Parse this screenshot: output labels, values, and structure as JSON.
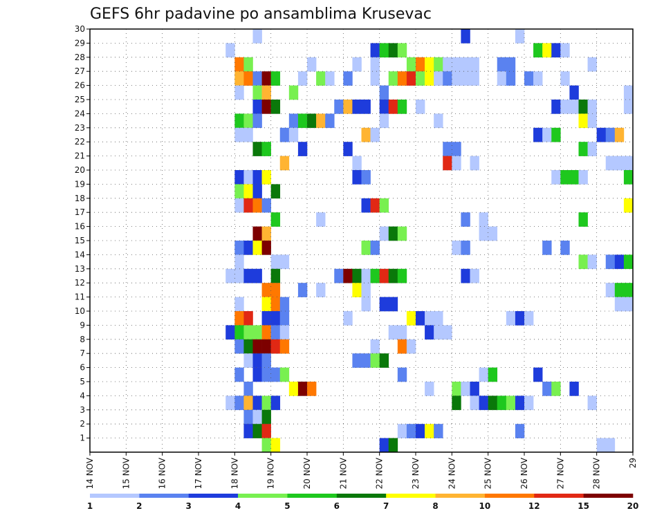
{
  "chart_data": {
    "type": "heatmap",
    "title": "GEFS 6hr padavine po ansamblima Krusevac",
    "xlabel": "",
    "ylabel": "",
    "y_ticks": [
      "1",
      "2",
      "3",
      "4",
      "5",
      "6",
      "7",
      "8",
      "9",
      "10",
      "11",
      "12",
      "13",
      "14",
      "15",
      "16",
      "17",
      "18",
      "19",
      "20",
      "21",
      "22",
      "23",
      "24",
      "25",
      "26",
      "27",
      "28",
      "29",
      "30"
    ],
    "x_ticks": [
      "14 NOV",
      "15 NOV",
      "16 NOV",
      "17 NOV",
      "18 NOV",
      "19 NOV",
      "20 NOV",
      "21 NOV",
      "22 NOV",
      "23 NOV",
      "24 NOV",
      "25 NOV",
      "26 NOV",
      "27 NOV",
      "28 NOV",
      "29"
    ],
    "x_range": [
      0,
      60
    ],
    "y_range": [
      0,
      30
    ],
    "time_step": "6hr",
    "legend": {
      "colors": [
        "#b4c8ff",
        "#5a82f0",
        "#1e3cdc",
        "#78f050",
        "#1ec81e",
        "#0a780a",
        "#ffff00",
        "#ffb432",
        "#ff7800",
        "#e12814",
        "#7d0000"
      ],
      "labels": [
        "1",
        "2",
        "3",
        "4",
        "5",
        "6",
        "7",
        "8",
        "10",
        "12",
        "15",
        "20"
      ]
    },
    "cells": [
      [
        18,
        29,
        1
      ],
      [
        41,
        29,
        3
      ],
      [
        47,
        29,
        1
      ],
      [
        15,
        28,
        1
      ],
      [
        31,
        28,
        3
      ],
      [
        32,
        28,
        5
      ],
      [
        33,
        28,
        6
      ],
      [
        34,
        28,
        4
      ],
      [
        49,
        28,
        5
      ],
      [
        50,
        28,
        7
      ],
      [
        51,
        28,
        3
      ],
      [
        52,
        28,
        1
      ],
      [
        16,
        27,
        9
      ],
      [
        17,
        27,
        4
      ],
      [
        24,
        27,
        1
      ],
      [
        29,
        27,
        1
      ],
      [
        31,
        27,
        1
      ],
      [
        35,
        27,
        4
      ],
      [
        36,
        27,
        9
      ],
      [
        37,
        27,
        7
      ],
      [
        38,
        27,
        4
      ],
      [
        39,
        27,
        1
      ],
      [
        40,
        27,
        1
      ],
      [
        41,
        27,
        1
      ],
      [
        42,
        27,
        1
      ],
      [
        45,
        27,
        2
      ],
      [
        46,
        27,
        2
      ],
      [
        55,
        27,
        1
      ],
      [
        16,
        26,
        8
      ],
      [
        17,
        26,
        9
      ],
      [
        18,
        26,
        2
      ],
      [
        19,
        26,
        11
      ],
      [
        20,
        26,
        5
      ],
      [
        23,
        26,
        1
      ],
      [
        25,
        26,
        4
      ],
      [
        26,
        26,
        1
      ],
      [
        28,
        26,
        2
      ],
      [
        31,
        26,
        1
      ],
      [
        33,
        26,
        4
      ],
      [
        34,
        26,
        9
      ],
      [
        35,
        26,
        10
      ],
      [
        36,
        26,
        4
      ],
      [
        37,
        26,
        7
      ],
      [
        38,
        26,
        1
      ],
      [
        39,
        26,
        2
      ],
      [
        40,
        26,
        1
      ],
      [
        41,
        26,
        1
      ],
      [
        42,
        26,
        1
      ],
      [
        45,
        26,
        1
      ],
      [
        46,
        26,
        2
      ],
      [
        48,
        26,
        2
      ],
      [
        49,
        26,
        1
      ],
      [
        52,
        26,
        1
      ],
      [
        16,
        25,
        1
      ],
      [
        18,
        25,
        4
      ],
      [
        19,
        25,
        8
      ],
      [
        22,
        25,
        4
      ],
      [
        32,
        25,
        2
      ],
      [
        53,
        25,
        3
      ],
      [
        59,
        25,
        1
      ],
      [
        18,
        24,
        3
      ],
      [
        19,
        24,
        11
      ],
      [
        20,
        24,
        6
      ],
      [
        27,
        24,
        2
      ],
      [
        28,
        24,
        8
      ],
      [
        29,
        24,
        3
      ],
      [
        30,
        24,
        3
      ],
      [
        32,
        24,
        3
      ],
      [
        33,
        24,
        10
      ],
      [
        34,
        24,
        5
      ],
      [
        36,
        24,
        1
      ],
      [
        51,
        24,
        3
      ],
      [
        52,
        24,
        1
      ],
      [
        53,
        24,
        1
      ],
      [
        54,
        24,
        6
      ],
      [
        55,
        24,
        1
      ],
      [
        59,
        24,
        1
      ],
      [
        16,
        23,
        5
      ],
      [
        17,
        23,
        4
      ],
      [
        18,
        23,
        2
      ],
      [
        22,
        23,
        2
      ],
      [
        23,
        23,
        5
      ],
      [
        24,
        23,
        6
      ],
      [
        25,
        23,
        8
      ],
      [
        26,
        23,
        2
      ],
      [
        32,
        23,
        1
      ],
      [
        38,
        23,
        1
      ],
      [
        54,
        23,
        7
      ],
      [
        55,
        23,
        1
      ],
      [
        16,
        22,
        1
      ],
      [
        17,
        22,
        1
      ],
      [
        21,
        22,
        2
      ],
      [
        22,
        22,
        1
      ],
      [
        30,
        22,
        8
      ],
      [
        31,
        22,
        1
      ],
      [
        49,
        22,
        3
      ],
      [
        50,
        22,
        1
      ],
      [
        51,
        22,
        5
      ],
      [
        56,
        22,
        3
      ],
      [
        57,
        22,
        2
      ],
      [
        58,
        22,
        8
      ],
      [
        18,
        21,
        6
      ],
      [
        19,
        21,
        5
      ],
      [
        23,
        21,
        3
      ],
      [
        28,
        21,
        3
      ],
      [
        39,
        21,
        2
      ],
      [
        40,
        21,
        2
      ],
      [
        54,
        21,
        5
      ],
      [
        55,
        21,
        1
      ],
      [
        21,
        20,
        8
      ],
      [
        29,
        20,
        1
      ],
      [
        39,
        20,
        10
      ],
      [
        40,
        20,
        1
      ],
      [
        42,
        20,
        1
      ],
      [
        57,
        20,
        1
      ],
      [
        58,
        20,
        1
      ],
      [
        59,
        20,
        1
      ],
      [
        16,
        19,
        3
      ],
      [
        17,
        19,
        1
      ],
      [
        18,
        19,
        3
      ],
      [
        19,
        19,
        7
      ],
      [
        29,
        19,
        3
      ],
      [
        30,
        19,
        2
      ],
      [
        51,
        19,
        1
      ],
      [
        52,
        19,
        5
      ],
      [
        53,
        19,
        5
      ],
      [
        54,
        19,
        1
      ],
      [
        59,
        19,
        5
      ],
      [
        16,
        18,
        4
      ],
      [
        17,
        18,
        7
      ],
      [
        18,
        18,
        3
      ],
      [
        20,
        18,
        6
      ],
      [
        16,
        17,
        1
      ],
      [
        17,
        17,
        10
      ],
      [
        18,
        17,
        9
      ],
      [
        19,
        17,
        2
      ],
      [
        30,
        17,
        3
      ],
      [
        31,
        17,
        10
      ],
      [
        32,
        17,
        4
      ],
      [
        59,
        17,
        7
      ],
      [
        20,
        16,
        5
      ],
      [
        25,
        16,
        1
      ],
      [
        41,
        16,
        2
      ],
      [
        43,
        16,
        1
      ],
      [
        54,
        16,
        5
      ],
      [
        18,
        15,
        11
      ],
      [
        19,
        15,
        8
      ],
      [
        32,
        15,
        1
      ],
      [
        33,
        15,
        6
      ],
      [
        34,
        15,
        4
      ],
      [
        43,
        15,
        1
      ],
      [
        44,
        15,
        1
      ],
      [
        16,
        14,
        2
      ],
      [
        17,
        14,
        3
      ],
      [
        18,
        14,
        7
      ],
      [
        19,
        14,
        11
      ],
      [
        30,
        14,
        4
      ],
      [
        31,
        14,
        2
      ],
      [
        40,
        14,
        1
      ],
      [
        41,
        14,
        2
      ],
      [
        50,
        14,
        2
      ],
      [
        52,
        14,
        2
      ],
      [
        16,
        13,
        1
      ],
      [
        20,
        13,
        1
      ],
      [
        21,
        13,
        1
      ],
      [
        54,
        13,
        4
      ],
      [
        55,
        13,
        1
      ],
      [
        57,
        13,
        2
      ],
      [
        58,
        13,
        3
      ],
      [
        59,
        13,
        5
      ],
      [
        15,
        12,
        1
      ],
      [
        16,
        12,
        1
      ],
      [
        17,
        12,
        3
      ],
      [
        18,
        12,
        3
      ],
      [
        20,
        12,
        6
      ],
      [
        27,
        12,
        2
      ],
      [
        28,
        12,
        11
      ],
      [
        29,
        12,
        6
      ],
      [
        30,
        12,
        1
      ],
      [
        31,
        12,
        5
      ],
      [
        32,
        12,
        10
      ],
      [
        33,
        12,
        6
      ],
      [
        34,
        12,
        5
      ],
      [
        41,
        12,
        3
      ],
      [
        42,
        12,
        1
      ],
      [
        19,
        11,
        9
      ],
      [
        20,
        11,
        9
      ],
      [
        23,
        11,
        2
      ],
      [
        25,
        11,
        1
      ],
      [
        29,
        11,
        7
      ],
      [
        30,
        11,
        1
      ],
      [
        57,
        11,
        1
      ],
      [
        58,
        11,
        5
      ],
      [
        59,
        11,
        5
      ],
      [
        16,
        10,
        1
      ],
      [
        19,
        10,
        7
      ],
      [
        20,
        10,
        9
      ],
      [
        21,
        10,
        2
      ],
      [
        30,
        10,
        1
      ],
      [
        32,
        10,
        3
      ],
      [
        33,
        10,
        3
      ],
      [
        58,
        10,
        1
      ],
      [
        59,
        10,
        1
      ],
      [
        16,
        9,
        9
      ],
      [
        17,
        9,
        10
      ],
      [
        19,
        9,
        3
      ],
      [
        20,
        9,
        3
      ],
      [
        21,
        9,
        2
      ],
      [
        28,
        9,
        1
      ],
      [
        35,
        9,
        7
      ],
      [
        36,
        9,
        3
      ],
      [
        37,
        9,
        1
      ],
      [
        38,
        9,
        1
      ],
      [
        46,
        9,
        1
      ],
      [
        47,
        9,
        3
      ],
      [
        48,
        9,
        1
      ],
      [
        15,
        8,
        3
      ],
      [
        16,
        8,
        5
      ],
      [
        17,
        8,
        4
      ],
      [
        18,
        8,
        4
      ],
      [
        19,
        8,
        9
      ],
      [
        20,
        8,
        2
      ],
      [
        21,
        8,
        1
      ],
      [
        33,
        8,
        1
      ],
      [
        34,
        8,
        1
      ],
      [
        37,
        8,
        3
      ],
      [
        38,
        8,
        1
      ],
      [
        39,
        8,
        1
      ],
      [
        16,
        7,
        2
      ],
      [
        17,
        7,
        6
      ],
      [
        18,
        7,
        11
      ],
      [
        19,
        7,
        11
      ],
      [
        20,
        7,
        10
      ],
      [
        21,
        7,
        9
      ],
      [
        31,
        7,
        1
      ],
      [
        34,
        7,
        9
      ],
      [
        35,
        7,
        1
      ],
      [
        17,
        6,
        1
      ],
      [
        18,
        6,
        3
      ],
      [
        19,
        6,
        2
      ],
      [
        29,
        6,
        2
      ],
      [
        30,
        6,
        2
      ],
      [
        31,
        6,
        4
      ],
      [
        32,
        6,
        6
      ],
      [
        16,
        5,
        2
      ],
      [
        18,
        5,
        3
      ],
      [
        19,
        5,
        2
      ],
      [
        20,
        5,
        2
      ],
      [
        21,
        5,
        4
      ],
      [
        34,
        5,
        2
      ],
      [
        43,
        5,
        1
      ],
      [
        44,
        5,
        5
      ],
      [
        49,
        5,
        3
      ],
      [
        17,
        4,
        2
      ],
      [
        22,
        4,
        7
      ],
      [
        23,
        4,
        11
      ],
      [
        24,
        4,
        9
      ],
      [
        37,
        4,
        1
      ],
      [
        40,
        4,
        4
      ],
      [
        41,
        4,
        1
      ],
      [
        42,
        4,
        3
      ],
      [
        50,
        4,
        2
      ],
      [
        51,
        4,
        4
      ],
      [
        53,
        4,
        3
      ],
      [
        15,
        3,
        1
      ],
      [
        16,
        3,
        2
      ],
      [
        17,
        3,
        8
      ],
      [
        18,
        3,
        3
      ],
      [
        19,
        3,
        4
      ],
      [
        20,
        3,
        3
      ],
      [
        40,
        3,
        6
      ],
      [
        42,
        3,
        1
      ],
      [
        43,
        3,
        3
      ],
      [
        44,
        3,
        6
      ],
      [
        45,
        3,
        5
      ],
      [
        46,
        3,
        4
      ],
      [
        47,
        3,
        3
      ],
      [
        48,
        3,
        1
      ],
      [
        55,
        3,
        1
      ],
      [
        17,
        2,
        2
      ],
      [
        18,
        2,
        1
      ],
      [
        19,
        2,
        6
      ],
      [
        17,
        1,
        3
      ],
      [
        18,
        1,
        6
      ],
      [
        19,
        1,
        10
      ],
      [
        34,
        1,
        1
      ],
      [
        35,
        1,
        2
      ],
      [
        36,
        1,
        3
      ],
      [
        37,
        1,
        7
      ],
      [
        38,
        1,
        2
      ],
      [
        47,
        1,
        2
      ],
      [
        19,
        0,
        4
      ],
      [
        20,
        0,
        7
      ],
      [
        32,
        0,
        3
      ],
      [
        33,
        0,
        6
      ],
      [
        56,
        0,
        1
      ],
      [
        57,
        0,
        1
      ]
    ]
  }
}
